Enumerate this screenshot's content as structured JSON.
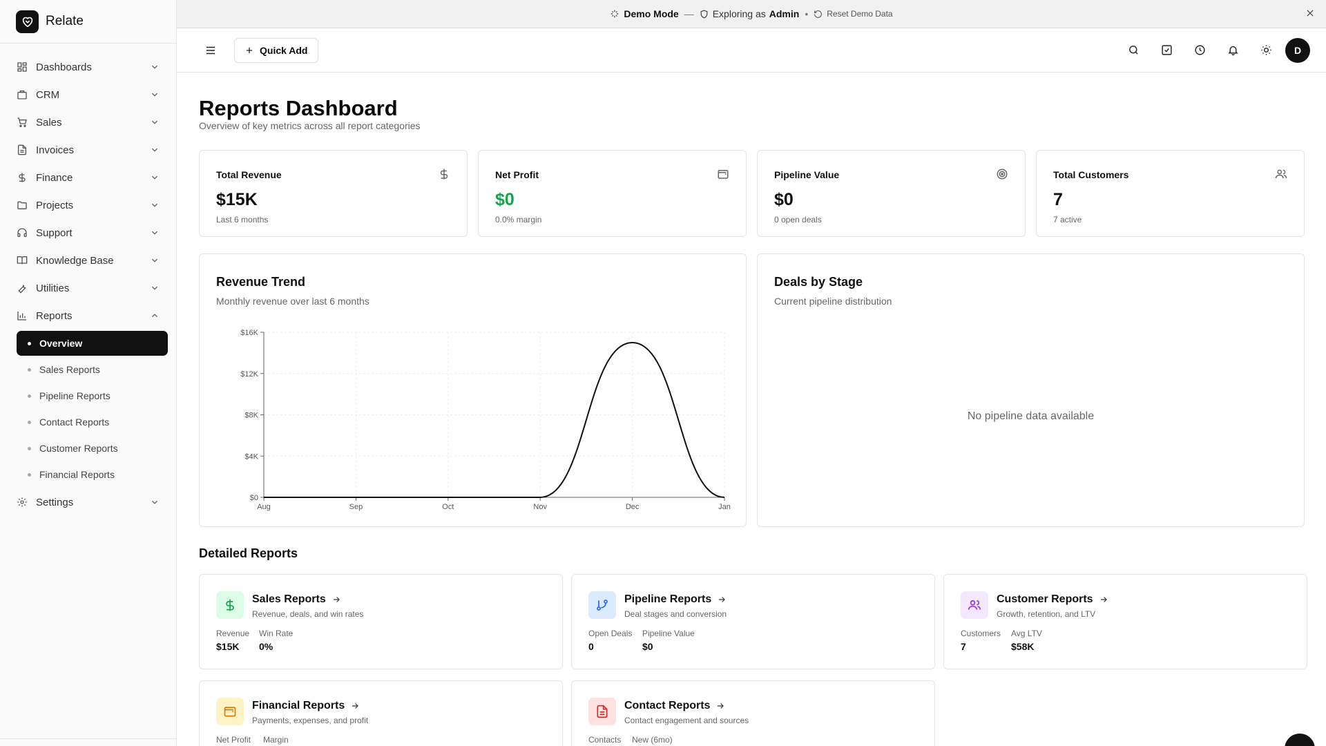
{
  "app": {
    "name": "Relate"
  },
  "banner": {
    "mode": "Demo Mode",
    "separator": "—",
    "exploring_prefix": "Exploring as",
    "role": "Admin",
    "dot": "•",
    "reset_label": "Reset Demo Data"
  },
  "header": {
    "quick_add_label": "Quick Add",
    "avatar_initial": "D"
  },
  "sidebar": {
    "items": [
      {
        "label": "Dashboards",
        "icon": "grid-icon"
      },
      {
        "label": "CRM",
        "icon": "building-icon"
      },
      {
        "label": "Sales",
        "icon": "cart-icon"
      },
      {
        "label": "Invoices",
        "icon": "document-icon"
      },
      {
        "label": "Finance",
        "icon": "dollar-icon"
      },
      {
        "label": "Projects",
        "icon": "folder-icon"
      },
      {
        "label": "Support",
        "icon": "headset-icon"
      },
      {
        "label": "Knowledge Base",
        "icon": "book-icon"
      },
      {
        "label": "Utilities",
        "icon": "wrench-icon"
      },
      {
        "label": "Reports",
        "icon": "bar-chart-icon",
        "expanded": true
      }
    ],
    "reports_sub": [
      {
        "label": "Overview",
        "active": true
      },
      {
        "label": "Sales Reports"
      },
      {
        "label": "Pipeline Reports"
      },
      {
        "label": "Contact Reports"
      },
      {
        "label": "Customer Reports"
      },
      {
        "label": "Financial Reports"
      }
    ],
    "settings": {
      "label": "Settings",
      "icon": "gear-icon"
    }
  },
  "page": {
    "title": "Reports Dashboard",
    "subtitle": "Overview of key metrics across all report categories"
  },
  "stats": [
    {
      "title": "Total Revenue",
      "value": "$15K",
      "note": "Last 6 months",
      "icon": "dollar-icon"
    },
    {
      "title": "Net Profit",
      "value": "$0",
      "note": "0.0% margin",
      "icon": "wallet-icon",
      "value_color": "#16a34a"
    },
    {
      "title": "Pipeline Value",
      "value": "$0",
      "note": "0 open deals",
      "icon": "target-icon"
    },
    {
      "title": "Total Customers",
      "value": "7",
      "note": "7 active",
      "icon": "users-icon"
    }
  ],
  "revenue_panel": {
    "title": "Revenue Trend",
    "subtitle": "Monthly revenue over last 6 months"
  },
  "deals_panel": {
    "title": "Deals by Stage",
    "subtitle": "Current pipeline distribution",
    "empty": "No pipeline data available"
  },
  "chart_data": {
    "type": "line",
    "title": "",
    "x": [
      "Aug",
      "Sep",
      "Oct",
      "Nov",
      "Dec",
      "Jan"
    ],
    "series": [
      {
        "values": [
          0,
          0,
          0,
          0,
          15000,
          0
        ]
      }
    ],
    "y_ticks": [
      "$0",
      "$4K",
      "$8K",
      "$12K",
      "$16K"
    ],
    "ylim": [
      0,
      16000
    ],
    "grid": true,
    "curve": "smooth",
    "line_color": "#111111"
  },
  "detailed": {
    "title": "Detailed Reports",
    "cards": [
      {
        "title": "Sales Reports",
        "desc": "Revenue, deals, and win rates",
        "icon": "dollar-icon",
        "icon_bg": "#dcfce7",
        "icon_color": "#16a34a",
        "metrics": [
          {
            "label": "Revenue",
            "value": "$15K"
          },
          {
            "label": "Win Rate",
            "value": "0%"
          }
        ]
      },
      {
        "title": "Pipeline Reports",
        "desc": "Deal stages and conversion",
        "icon": "git-branch-icon",
        "icon_bg": "#dbeafe",
        "icon_color": "#2563eb",
        "metrics": [
          {
            "label": "Open Deals",
            "value": "0"
          },
          {
            "label": "Pipeline Value",
            "value": "$0"
          }
        ]
      },
      {
        "title": "Customer Reports",
        "desc": "Growth, retention, and LTV",
        "icon": "users-icon",
        "icon_bg": "#f3e8ff",
        "icon_color": "#9333ea",
        "metrics": [
          {
            "label": "Customers",
            "value": "7"
          },
          {
            "label": "Avg LTV",
            "value": "$58K"
          }
        ]
      },
      {
        "title": "Financial Reports",
        "desc": "Payments, expenses, and profit",
        "icon": "wallet-icon",
        "icon_bg": "#fef3c7",
        "icon_color": "#d97706",
        "metrics": [
          {
            "label": "Net Profit",
            "value": ""
          },
          {
            "label": "Margin",
            "value": ""
          }
        ]
      },
      {
        "title": "Contact Reports",
        "desc": "Contact engagement and sources",
        "icon": "file-text-icon",
        "icon_bg": "#fee2e2",
        "icon_color": "#dc2626",
        "metrics": [
          {
            "label": "Contacts",
            "value": ""
          },
          {
            "label": "New (6mo)",
            "value": ""
          }
        ]
      }
    ]
  }
}
